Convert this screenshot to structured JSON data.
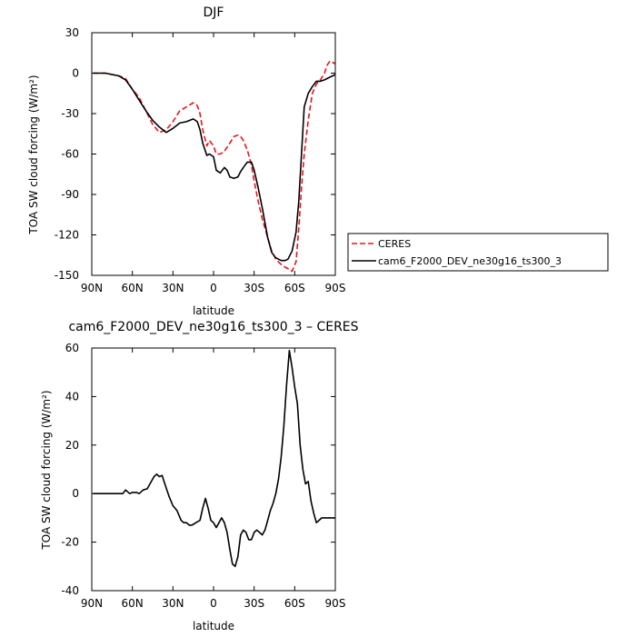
{
  "chart_data": [
    {
      "type": "line",
      "title": "DJF",
      "xlabel": "latitude",
      "ylabel": "TOA SW cloud forcing (W/m²)",
      "xlim": [
        90,
        -90
      ],
      "ylim": [
        -150,
        30
      ],
      "xticks": [
        90,
        60,
        30,
        0,
        -30,
        -60,
        -90
      ],
      "xtick_labels": [
        "90N",
        "60N",
        "30N",
        "0",
        "30S",
        "60S",
        "90S"
      ],
      "yticks": [
        30,
        0,
        -30,
        -60,
        -90,
        -120,
        -150
      ],
      "ytick_labels": [
        "30",
        "0",
        "-30",
        "-60",
        "-90",
        "-120",
        "-150"
      ],
      "legend_position": "right",
      "series": [
        {
          "name": "CERES",
          "color": "#e8141c",
          "dash": "dashed",
          "x": [
            89,
            85,
            80,
            75,
            70,
            65,
            60,
            55,
            50,
            45,
            40,
            35,
            30,
            25,
            20,
            15,
            12,
            10,
            8,
            5,
            3,
            0,
            -2,
            -5,
            -8,
            -10,
            -12,
            -15,
            -18,
            -20,
            -22,
            -25,
            -28,
            -30,
            -33,
            -36,
            -40,
            -43,
            -46,
            -50,
            -53,
            -55,
            -58,
            -61,
            -63,
            -65,
            -67,
            -70,
            -73,
            -76,
            -79,
            -82,
            -84,
            -86,
            -88,
            -90
          ],
          "y": [
            0,
            0,
            0,
            -1,
            -2,
            -4,
            -12,
            -18,
            -28,
            -38,
            -44,
            -42,
            -36,
            -28,
            -25,
            -22,
            -24,
            -30,
            -42,
            -54,
            -50,
            -54,
            -60,
            -60,
            -58,
            -55,
            -52,
            -47,
            -46,
            -47,
            -50,
            -57,
            -68,
            -80,
            -95,
            -108,
            -122,
            -132,
            -138,
            -142,
            -144,
            -145,
            -147,
            -140,
            -115,
            -85,
            -60,
            -35,
            -15,
            -8,
            -5,
            0,
            6,
            9,
            8,
            7
          ]
        },
        {
          "name": "cam6_F2000_DEV_ne30g16_ts300_3",
          "color": "#000000",
          "dash": "solid",
          "x": [
            89,
            85,
            80,
            75,
            70,
            65,
            60,
            55,
            50,
            45,
            40,
            35,
            30,
            25,
            20,
            15,
            12,
            10,
            8,
            5,
            3,
            0,
            -2,
            -5,
            -8,
            -10,
            -12,
            -15,
            -18,
            -20,
            -22,
            -25,
            -28,
            -30,
            -33,
            -36,
            -40,
            -43,
            -46,
            -50,
            -53,
            -55,
            -58,
            -61,
            -63,
            -65,
            -67,
            -70,
            -73,
            -76,
            -79,
            -82,
            -84,
            -86,
            -88,
            -90
          ],
          "y": [
            0,
            0,
            0,
            -1,
            -2,
            -5,
            -12,
            -20,
            -28,
            -35,
            -40,
            -44,
            -41,
            -37,
            -36,
            -34,
            -36,
            -42,
            -52,
            -61,
            -60,
            -62,
            -72,
            -74,
            -70,
            -72,
            -77,
            -78,
            -77,
            -73,
            -70,
            -66,
            -66,
            -72,
            -85,
            -100,
            -122,
            -133,
            -137,
            -139,
            -139,
            -138,
            -132,
            -118,
            -95,
            -60,
            -25,
            -15,
            -10,
            -6,
            -6,
            -5,
            -4,
            -3,
            -2,
            -1
          ]
        }
      ]
    },
    {
      "type": "line",
      "title": "cam6_F2000_DEV_ne30g16_ts300_3 – CERES",
      "xlabel": "latitude",
      "ylabel": "TOA SW cloud forcing (W/m²)",
      "xlim": [
        90,
        -90
      ],
      "ylim": [
        -40,
        60
      ],
      "xticks": [
        90,
        60,
        30,
        0,
        -30,
        -60,
        -90
      ],
      "xtick_labels": [
        "90N",
        "60N",
        "30N",
        "0",
        "30S",
        "60S",
        "90S"
      ],
      "yticks": [
        60,
        40,
        20,
        0,
        -20,
        -40
      ],
      "ytick_labels": [
        "60",
        "40",
        "20",
        "0",
        "-20",
        "-40"
      ],
      "series": [
        {
          "color": "#000000",
          "dash": "solid",
          "x": [
            89,
            80,
            75,
            70,
            67,
            65,
            62,
            60,
            57,
            55,
            52,
            49,
            46,
            44,
            42,
            40,
            38,
            36,
            33,
            30,
            27,
            24,
            22,
            20,
            18,
            16,
            13,
            10,
            8,
            6,
            4,
            2,
            0,
            -2,
            -4,
            -6,
            -8,
            -10,
            -12,
            -14,
            -16,
            -18,
            -20,
            -22,
            -24,
            -26,
            -28,
            -30,
            -32,
            -34,
            -36,
            -38,
            -40,
            -42,
            -44,
            -46,
            -48,
            -50,
            -52,
            -54,
            -56,
            -58,
            -60,
            -62,
            -64,
            -66,
            -68,
            -70,
            -72,
            -74,
            -76,
            -78,
            -80,
            -82,
            -84,
            -86,
            -88,
            -90
          ],
          "y": [
            0,
            0,
            0,
            0,
            0,
            1.5,
            0,
            0.5,
            0.5,
            0,
            1.5,
            2,
            5,
            7,
            8,
            7,
            7.5,
            4,
            -1,
            -5,
            -7,
            -11,
            -12,
            -12,
            -13,
            -13,
            -12,
            -11,
            -6,
            -2,
            -6,
            -11,
            -12,
            -14,
            -12,
            -10,
            -12,
            -16,
            -23,
            -29,
            -30,
            -26,
            -17,
            -15,
            -16,
            -19,
            -19,
            -16,
            -15,
            -16,
            -17,
            -15,
            -11,
            -7,
            -4,
            0,
            6,
            15,
            28,
            45,
            59,
            52,
            44,
            37,
            20,
            10,
            4,
            5,
            -3,
            -8,
            -12,
            -11,
            -10,
            -10,
            -10,
            -10,
            -10,
            -10
          ]
        }
      ]
    }
  ]
}
